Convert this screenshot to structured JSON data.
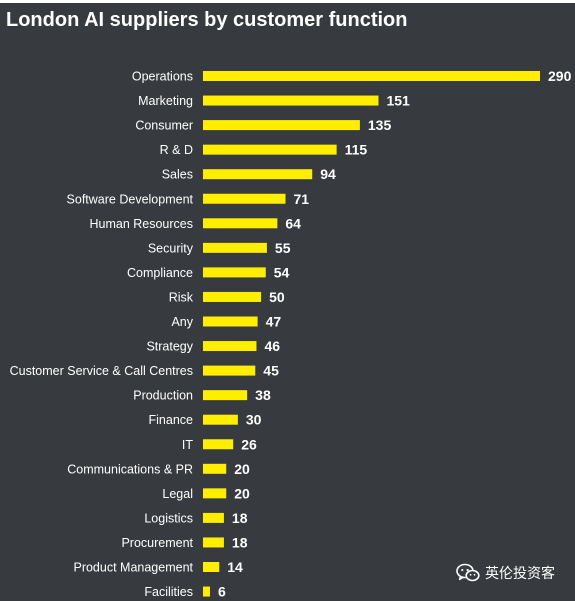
{
  "title": "London AI suppliers by customer function",
  "watermark": {
    "text": "英伦投资客",
    "icon": "wechat-icon"
  },
  "colors": {
    "background": "#373a3f",
    "bar": "#ffee00",
    "text": "#ffffff"
  },
  "chart_data": {
    "type": "bar",
    "orientation": "horizontal",
    "title": "London AI suppliers by customer function",
    "xlabel": "",
    "ylabel": "",
    "xlim": [
      0,
      290
    ],
    "grid": false,
    "legend": "none",
    "data_labels": true,
    "categories": [
      "Operations",
      "Marketing",
      "Consumer",
      "R & D",
      "Sales",
      "Software Development",
      "Human Resources",
      "Security",
      "Compliance",
      "Risk",
      "Any",
      "Strategy",
      "Customer Service & Call Centres",
      "Production",
      "Finance",
      "IT",
      "Communications & PR",
      "Legal",
      "Logistics",
      "Procurement",
      "Product Management",
      "Facilities"
    ],
    "values": [
      290,
      151,
      135,
      115,
      94,
      71,
      64,
      55,
      54,
      50,
      47,
      46,
      45,
      38,
      30,
      26,
      20,
      20,
      18,
      18,
      14,
      6
    ]
  }
}
